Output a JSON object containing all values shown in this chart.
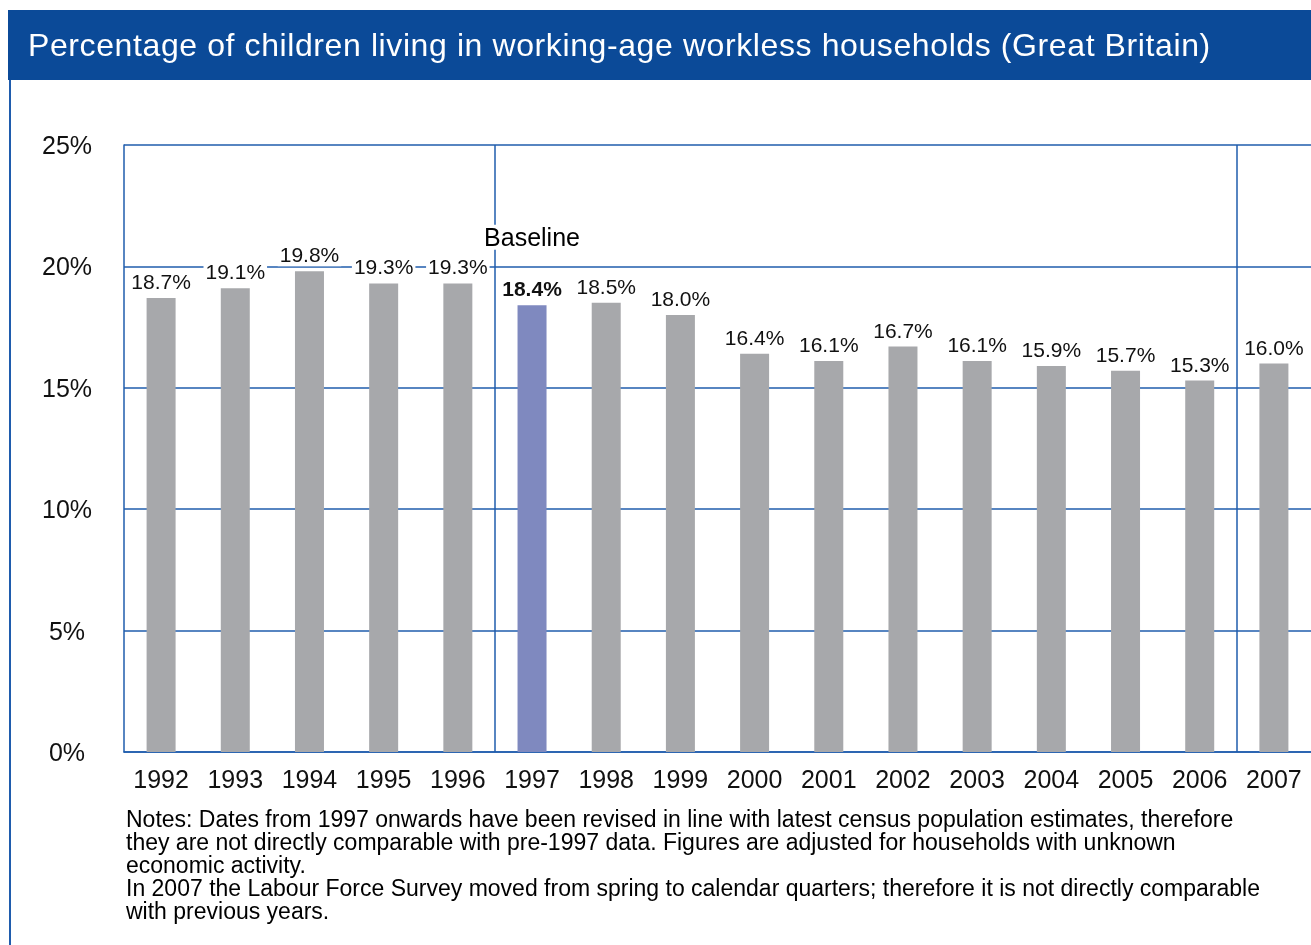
{
  "chart_data": {
    "type": "bar",
    "title": "Percentage of children living in working-age workless households (Great Britain)",
    "x": [
      1992,
      1993,
      1994,
      1995,
      1996,
      1997,
      1998,
      1999,
      2000,
      2001,
      2002,
      2003,
      2004,
      2005,
      2006,
      2007
    ],
    "values": [
      18.7,
      19.1,
      19.8,
      19.3,
      19.3,
      18.4,
      18.5,
      18.0,
      16.4,
      16.1,
      16.7,
      16.1,
      15.9,
      15.7,
      15.3,
      16.0
    ],
    "colors": [
      "#a7a8ab",
      "#a7a8ab",
      "#a7a8ab",
      "#a7a8ab",
      "#a7a8ab",
      "#7f89bf",
      "#a7a8ab",
      "#a7a8ab",
      "#a7a8ab",
      "#a7a8ab",
      "#a7a8ab",
      "#a7a8ab",
      "#a7a8ab",
      "#a7a8ab",
      "#a7a8ab",
      "#a7a8ab"
    ],
    "value_labels": [
      "18.7%",
      "19.1%",
      "19.8%",
      "19.3%",
      "19.3%",
      "18.4%",
      "18.5%",
      "18.0%",
      "16.4%",
      "16.1%",
      "16.7%",
      "16.1%",
      "15.9%",
      "15.7%",
      "15.3%",
      "16.0%"
    ],
    "xlim": [
      1991.5,
      2007.5
    ],
    "xticks": [
      1992,
      1993,
      1994,
      1995,
      1996,
      1997,
      1998,
      1999,
      2000,
      2001,
      2002,
      2003,
      2004,
      2005,
      2006,
      2007
    ],
    "ylim": [
      0,
      25
    ],
    "yticks": [
      {
        "value": 0,
        "label": "0%"
      },
      {
        "value": 5,
        "label": "5%"
      },
      {
        "value": 10,
        "label": "10%"
      },
      {
        "value": 15,
        "label": "15%"
      },
      {
        "value": 20,
        "label": "20%"
      },
      {
        "value": 25,
        "label": "25%"
      }
    ],
    "grid": "y",
    "ref_lines": [
      {
        "axis": "x",
        "value": 1996.5,
        "color": "#1f5cad"
      },
      {
        "axis": "x",
        "value": 2006.5,
        "color": "#1f5cad"
      }
    ],
    "annotations": [
      {
        "text": "Baseline",
        "x": 1997,
        "y": 18.4
      },
      "Notes: Dates from 1997 onwards have been revised in line with latest census population estimates, therefore they are not directly comparable with pre-1997 data. Figures are adjusted for households with unknown economic activity.",
      "In 2007 the Labour Force Survey moved from spring to calendar quarters; therefore it is not directly comparable with previous years."
    ]
  }
}
